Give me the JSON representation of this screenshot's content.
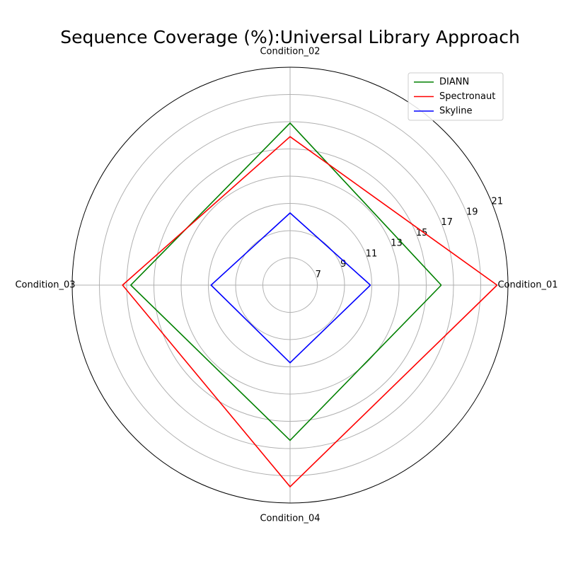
{
  "chart_data": {
    "type": "radar",
    "title": "Sequence Coverage (%):Universal Library Approach",
    "categories": [
      "Condition_01",
      "Condition_02",
      "Condition_03",
      "Condition_04"
    ],
    "r_ticks": [
      7,
      9,
      11,
      13,
      15,
      17,
      19,
      21
    ],
    "r_range": [
      5,
      21
    ],
    "grid": true,
    "legend_position": "top-right",
    "series": [
      {
        "name": "DIANN",
        "color": "#008000",
        "values": [
          16.1,
          16.9,
          16.7,
          16.4
        ]
      },
      {
        "name": "Spectronaut",
        "color": "#ff0000",
        "values": [
          20.2,
          15.9,
          17.3,
          19.8
        ]
      },
      {
        "name": "Skyline",
        "color": "#0000ff",
        "values": [
          10.9,
          10.3,
          10.8,
          10.7
        ]
      }
    ]
  }
}
